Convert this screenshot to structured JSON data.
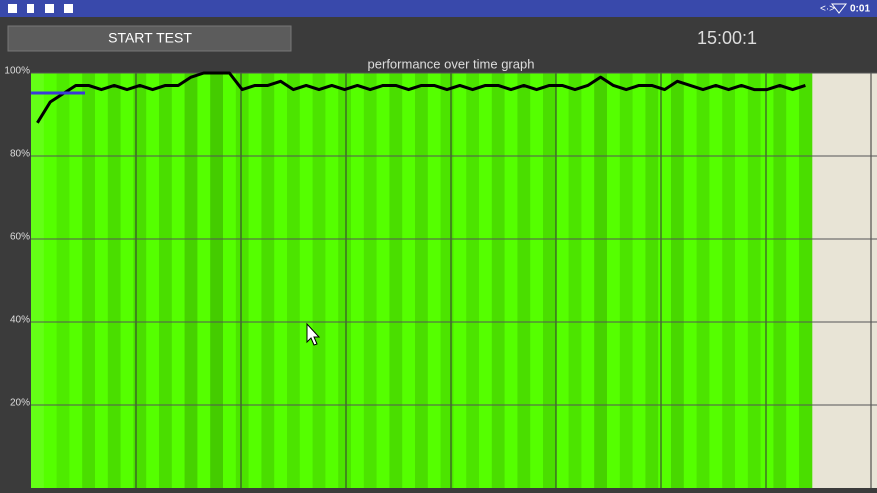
{
  "status_bar": {
    "time": "0:01"
  },
  "button": {
    "label": "START TEST"
  },
  "timer": "15:00:1",
  "chart_data": {
    "type": "line",
    "title": "performance over time graph",
    "values": [
      88,
      93,
      95,
      97,
      97,
      96,
      97,
      96,
      97,
      96,
      97,
      97,
      99,
      100,
      100,
      100,
      96,
      97,
      97,
      98,
      96,
      97,
      96,
      97,
      96,
      97,
      96,
      97,
      97,
      96,
      97,
      97,
      96,
      97,
      96,
      97,
      97,
      96,
      97,
      96,
      97,
      97,
      96,
      97,
      99,
      97,
      96,
      97,
      97,
      96,
      98,
      97,
      96,
      97,
      96,
      97,
      96,
      96,
      97,
      96,
      97
    ],
    "color": "#000000",
    "fill_color": "#55ff00",
    "ylim": [
      0,
      100
    ],
    "yticks": [
      {
        "value": 20,
        "label": "20%"
      },
      {
        "value": 40,
        "label": "40%"
      },
      {
        "value": 60,
        "label": "60%"
      },
      {
        "value": 80,
        "label": "80%"
      },
      {
        "value": 100,
        "label": "100%"
      }
    ],
    "grid": true
  }
}
